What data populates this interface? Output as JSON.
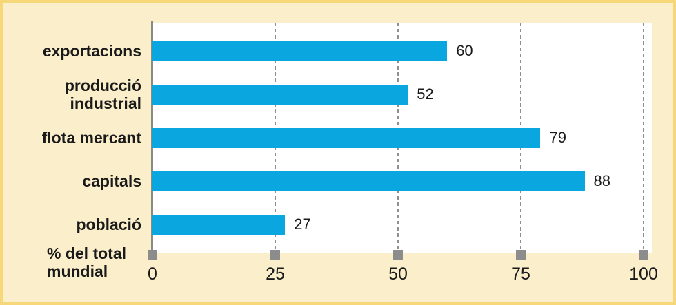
{
  "chart_data": {
    "type": "bar",
    "orientation": "horizontal",
    "categories": [
      "exportacions",
      "producció industrial",
      "flota mercant",
      "capitals",
      "població"
    ],
    "category_lines": [
      [
        "exportacions"
      ],
      [
        "producció",
        "industrial"
      ],
      [
        "flota mercant"
      ],
      [
        "capitals"
      ],
      [
        "població"
      ]
    ],
    "values": [
      60,
      52,
      79,
      88,
      27
    ],
    "data_labels": [
      "60",
      "52",
      "79",
      "88",
      "27"
    ],
    "xlabel": "% del total mundial",
    "xlabel_lines": [
      "% del total",
      "mundial"
    ],
    "xticks": [
      "0",
      "25",
      "50",
      "75",
      "100"
    ],
    "xtick_values": [
      0,
      25,
      50,
      75,
      100
    ],
    "xlim": [
      0,
      100
    ],
    "grid": "vertical-dashed",
    "legend_position": "none"
  },
  "colors": {
    "bar": "#09A6E0",
    "plot_background": "#FFFFFF",
    "page_background": "#FBEECB",
    "frame_border": "#F6D77A",
    "grid": "#8F8F8F",
    "axis": "#8A8A8A",
    "tick_marker": "#8C8C8C",
    "text": "#1A1A1A"
  }
}
